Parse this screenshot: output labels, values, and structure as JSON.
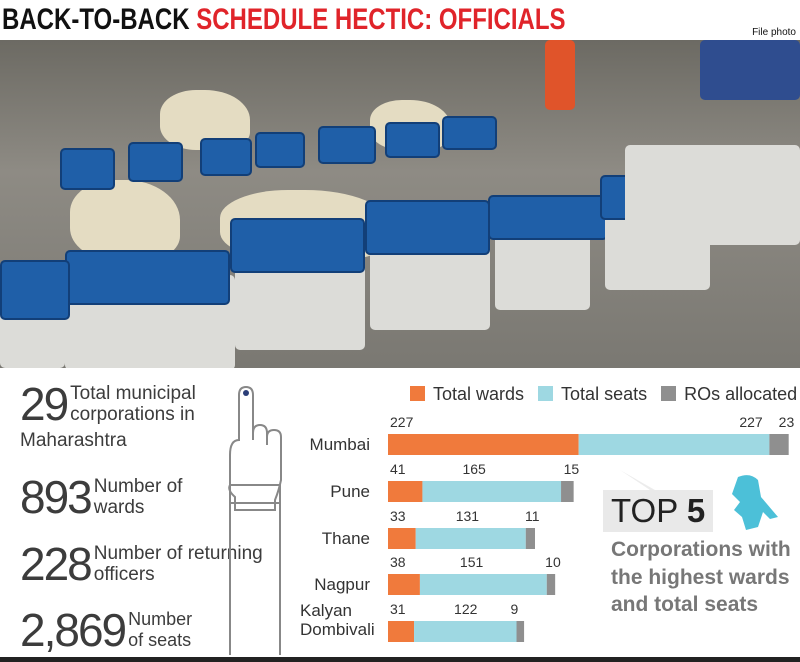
{
  "header": {
    "title_black": "BACK-TO-BACK",
    "title_red": "SCHEDULE HECTIC: OFFICIALS",
    "credit": "File photo"
  },
  "stats": [
    {
      "number": "29",
      "label": "Total municipal corporations in",
      "label2": "Maharashtra"
    },
    {
      "number": "893",
      "label": "Number of wards"
    },
    {
      "number": "228",
      "label": "Number of returning officers"
    },
    {
      "number": "2,869",
      "label": "Number of seats"
    }
  ],
  "callout": {
    "top": "TOP",
    "five": "5",
    "subtitle": "Corporations with the highest wards and total seats"
  },
  "colors": {
    "wards": "#f07a3c",
    "seats": "#9ed8e2",
    "ros": "#8f8f8f",
    "title_red": "#e0242a",
    "map": "#4cc0d8"
  },
  "icons": [
    "inked-finger-icon",
    "maharashtra-map-icon"
  ],
  "chart_data": {
    "type": "bar",
    "orientation": "horizontal",
    "stacked": true,
    "categories": [
      "Mumbai",
      "Pune",
      "Thane",
      "Nagpur",
      "Kalyan Dombivali"
    ],
    "series": [
      {
        "name": "Total wards",
        "values": [
          227,
          41,
          33,
          38,
          31
        ]
      },
      {
        "name": "Total seats",
        "values": [
          227,
          165,
          131,
          151,
          122
        ]
      },
      {
        "name": "ROs allocated",
        "values": [
          23,
          15,
          11,
          10,
          9
        ]
      }
    ],
    "legend": "top",
    "grid": false
  }
}
